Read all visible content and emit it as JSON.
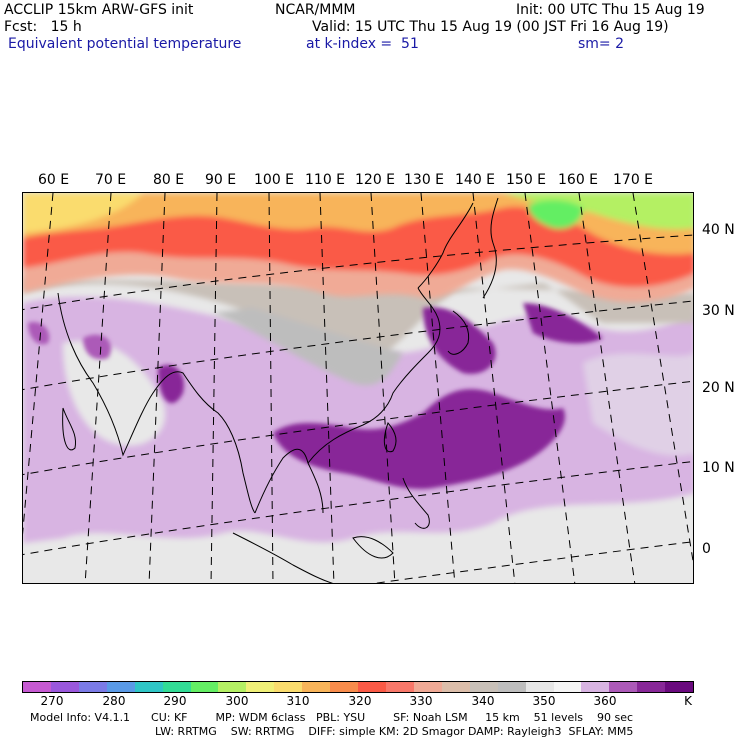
{
  "header": {
    "line1_left": "ACCLIP 15km ARW-GFS init",
    "line1_mid": "NCAR/MMM",
    "line1_right": "Init: 00 UTC Thu 15 Aug 19",
    "line2_left": "Fcst:   15 h",
    "line2_right": "Valid: 15 UTC Thu 15 Aug 19 (00 JST Fri 16 Aug 19)",
    "line3_left": "Equivalent potential temperature",
    "line3_mid": "at k-index =  51",
    "line3_right": "sm= 2"
  },
  "map": {
    "lon_labels": [
      "60 E",
      "70 E",
      "80 E",
      "90 E",
      "100 E",
      "110 E",
      "120 E",
      "130 E",
      "140 E",
      "150 E",
      "160 E",
      "170 E"
    ],
    "lat_labels": [
      "40 N",
      "30 N",
      "20 N",
      "10 N",
      "0"
    ],
    "field": "Equivalent potential temperature",
    "units": "K"
  },
  "colorbar": {
    "colors": [
      "#c65ad2",
      "#9a58dc",
      "#7b7be6",
      "#5a9ae6",
      "#2fc6c6",
      "#32dc96",
      "#64ee64",
      "#b4f064",
      "#f0f078",
      "#fadc6e",
      "#f8b45a",
      "#f88c4c",
      "#fa5a46",
      "#f8786a",
      "#f0aa96",
      "#dcbeaa",
      "#c8c0b8",
      "#bebebe",
      "#e6e6e6",
      "#f5f5f5",
      "#d8b4e2",
      "#ac5ab8",
      "#882898",
      "#6a0a7e"
    ],
    "tick_labels": [
      "270",
      "280",
      "290",
      "300",
      "310",
      "320",
      "330",
      "340",
      "350",
      "360"
    ],
    "units": "K"
  },
  "footer": {
    "line1": "Model Info: V4.1.1      CU: KF        MP: WDM 6class   PBL: YSU        SF: Noah LSM     15 km    51 levels    90 sec",
    "line2": "LW: RRTMG    SW: RRTMG    DIFF: simple KM: 2D Smagor DAMP: Rayleigh3  SFLAY: MM5"
  }
}
